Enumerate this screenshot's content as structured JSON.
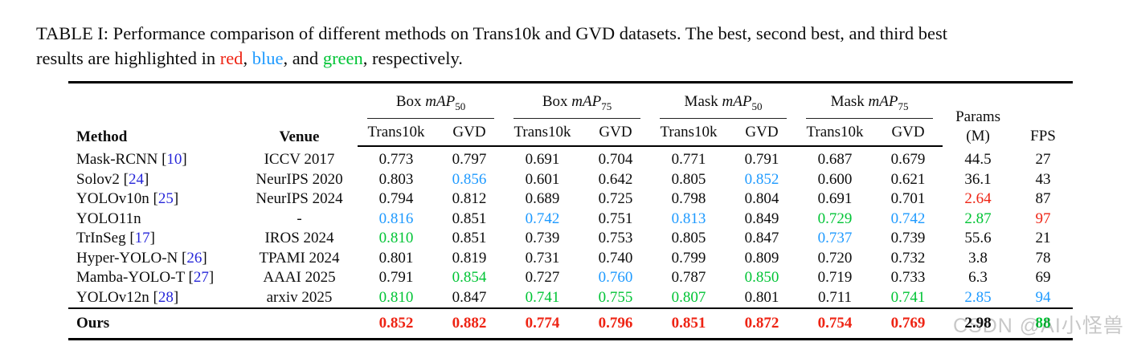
{
  "colors": {
    "best": "#ee2414",
    "second": "#1e9aff",
    "third": "#00c435",
    "citation": "#2626d9",
    "watermark_gray": "#c5c5c5"
  },
  "caption": {
    "line1": [
      {
        "t": "TABLE I: Performance comparison of different methods on Trans10k and GVD datasets. The best, second best, and third best"
      }
    ],
    "line2": [
      {
        "t": "results are highlighted in "
      },
      {
        "t": "red",
        "r": "best"
      },
      {
        "t": ", "
      },
      {
        "t": "blue",
        "r": "second"
      },
      {
        "t": ", and "
      },
      {
        "t": "green",
        "r": "third"
      },
      {
        "t": ", respectively."
      }
    ]
  },
  "header": {
    "method": "Method",
    "venue": "Venue",
    "groups": [
      {
        "name": "Box",
        "metric": "mAP",
        "sub": "50",
        "cols": [
          "Trans10k",
          "GVD"
        ]
      },
      {
        "name": "Box",
        "metric": "mAP",
        "sub": "75",
        "cols": [
          "Trans10k",
          "GVD"
        ]
      },
      {
        "name": "Mask",
        "metric": "mAP",
        "sub": "50",
        "cols": [
          "Trans10k",
          "GVD"
        ]
      },
      {
        "name": "Mask",
        "metric": "mAP",
        "sub": "75",
        "cols": [
          "Trans10k",
          "GVD"
        ]
      }
    ],
    "params_line1": "Params",
    "params_line2": "(M)",
    "fps": "FPS"
  },
  "rows": [
    {
      "method": "Mask-RCNN",
      "cite": "10",
      "venue": "ICCV 2017",
      "cells": [
        {
          "v": "0.773"
        },
        {
          "v": "0.797"
        },
        {
          "v": "0.691"
        },
        {
          "v": "0.704"
        },
        {
          "v": "0.771"
        },
        {
          "v": "0.791"
        },
        {
          "v": "0.687"
        },
        {
          "v": "0.679"
        },
        {
          "v": "44.5"
        },
        {
          "v": "27"
        }
      ]
    },
    {
      "method": "Solov2",
      "cite": "24",
      "venue": "NeurIPS 2020",
      "cells": [
        {
          "v": "0.803"
        },
        {
          "v": "0.856",
          "r": "second"
        },
        {
          "v": "0.601"
        },
        {
          "v": "0.642"
        },
        {
          "v": "0.805"
        },
        {
          "v": "0.852",
          "r": "second"
        },
        {
          "v": "0.600"
        },
        {
          "v": "0.621"
        },
        {
          "v": "36.1"
        },
        {
          "v": "43"
        }
      ]
    },
    {
      "method": "YOLOv10n",
      "cite": "25",
      "venue": "NeurIPS 2024",
      "cells": [
        {
          "v": "0.794"
        },
        {
          "v": "0.812"
        },
        {
          "v": "0.689"
        },
        {
          "v": "0.725"
        },
        {
          "v": "0.798"
        },
        {
          "v": "0.804"
        },
        {
          "v": "0.691"
        },
        {
          "v": "0.701"
        },
        {
          "v": "2.64",
          "r": "best"
        },
        {
          "v": "87"
        }
      ]
    },
    {
      "method": "YOLO11n",
      "cite": null,
      "venue": "-",
      "cells": [
        {
          "v": "0.816",
          "r": "second"
        },
        {
          "v": "0.851"
        },
        {
          "v": "0.742",
          "r": "second"
        },
        {
          "v": "0.751"
        },
        {
          "v": "0.813",
          "r": "second"
        },
        {
          "v": "0.849"
        },
        {
          "v": "0.729",
          "r": "third"
        },
        {
          "v": "0.742",
          "r": "second"
        },
        {
          "v": "2.87",
          "r": "third"
        },
        {
          "v": "97",
          "r": "best"
        }
      ]
    },
    {
      "method": "TrInSeg",
      "cite": "17",
      "venue": "IROS 2024",
      "cells": [
        {
          "v": "0.810",
          "r": "third"
        },
        {
          "v": "0.851"
        },
        {
          "v": "0.739"
        },
        {
          "v": "0.753"
        },
        {
          "v": "0.805"
        },
        {
          "v": "0.847"
        },
        {
          "v": "0.737",
          "r": "second"
        },
        {
          "v": "0.739"
        },
        {
          "v": "55.6"
        },
        {
          "v": "21"
        }
      ]
    },
    {
      "method": "Hyper-YOLO-N",
      "cite": "26",
      "venue": "TPAMI 2024",
      "cells": [
        {
          "v": "0.801"
        },
        {
          "v": "0.819"
        },
        {
          "v": "0.731"
        },
        {
          "v": "0.740"
        },
        {
          "v": "0.799"
        },
        {
          "v": "0.809"
        },
        {
          "v": "0.720"
        },
        {
          "v": "0.732"
        },
        {
          "v": "3.8"
        },
        {
          "v": "78"
        }
      ]
    },
    {
      "method": "Mamba-YOLO-T",
      "cite": "27",
      "venue": "AAAI 2025",
      "cells": [
        {
          "v": "0.791"
        },
        {
          "v": "0.854",
          "r": "third"
        },
        {
          "v": "0.727"
        },
        {
          "v": "0.760",
          "r": "second"
        },
        {
          "v": "0.787"
        },
        {
          "v": "0.850",
          "r": "third"
        },
        {
          "v": "0.719"
        },
        {
          "v": "0.733"
        },
        {
          "v": "6.3"
        },
        {
          "v": "69"
        }
      ]
    },
    {
      "method": "YOLOv12n",
      "cite": "28",
      "venue": "arxiv 2025",
      "cells": [
        {
          "v": "0.810",
          "r": "third"
        },
        {
          "v": "0.847"
        },
        {
          "v": "0.741",
          "r": "third"
        },
        {
          "v": "0.755",
          "r": "third"
        },
        {
          "v": "0.807",
          "r": "third"
        },
        {
          "v": "0.801"
        },
        {
          "v": "0.711"
        },
        {
          "v": "0.741",
          "r": "third"
        },
        {
          "v": "2.85",
          "r": "second"
        },
        {
          "v": "94",
          "r": "second"
        }
      ]
    }
  ],
  "ours": {
    "method": "Ours",
    "venue": "",
    "cells": [
      {
        "v": "0.852",
        "r": "best"
      },
      {
        "v": "0.882",
        "r": "best"
      },
      {
        "v": "0.774",
        "r": "best"
      },
      {
        "v": "0.796",
        "r": "best"
      },
      {
        "v": "0.851",
        "r": "best"
      },
      {
        "v": "0.872",
        "r": "best"
      },
      {
        "v": "0.754",
        "r": "best"
      },
      {
        "v": "0.769",
        "r": "best"
      },
      {
        "v": "2.98"
      },
      {
        "v": "88",
        "r": "third"
      }
    ]
  },
  "watermark": {
    "text": "CSDN @AI小怪兽"
  }
}
